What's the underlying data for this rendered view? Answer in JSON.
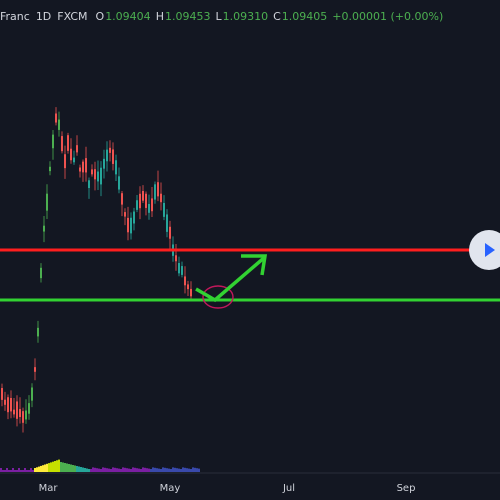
{
  "header": {
    "symbol": "Franc",
    "timeframe": "1D",
    "exchange": "FXCM",
    "open_label": "O",
    "open": "1.09404",
    "high_label": "H",
    "high": "1.09453",
    "low_label": "L",
    "low": "1.09310",
    "close_label": "C",
    "close": "1.09405",
    "change": "+0.00001 (+0.00%)"
  },
  "colors": {
    "background": "#131722",
    "candle_up": "#26a69a",
    "candle_up_bright": "#4caf50",
    "candle_down": "#ef5350",
    "resistance_line": "#ff1e1e",
    "support_line": "#32d232",
    "arrow": "#32d232",
    "ellipse": "#c2185b"
  },
  "icons": {
    "play_button": "play-icon"
  },
  "chart_data": {
    "type": "candlestick",
    "x_tick_labels": [
      "Mar",
      "May",
      "Jul",
      "Sep"
    ],
    "levels": [
      {
        "kind": "resistance",
        "color": "#ff1e1e"
      },
      {
        "kind": "support",
        "color": "#32d232"
      }
    ],
    "annotations": [
      "upward-arrow",
      "ellipse-highlight"
    ],
    "indicator_panel": "histogram",
    "grid": false
  }
}
